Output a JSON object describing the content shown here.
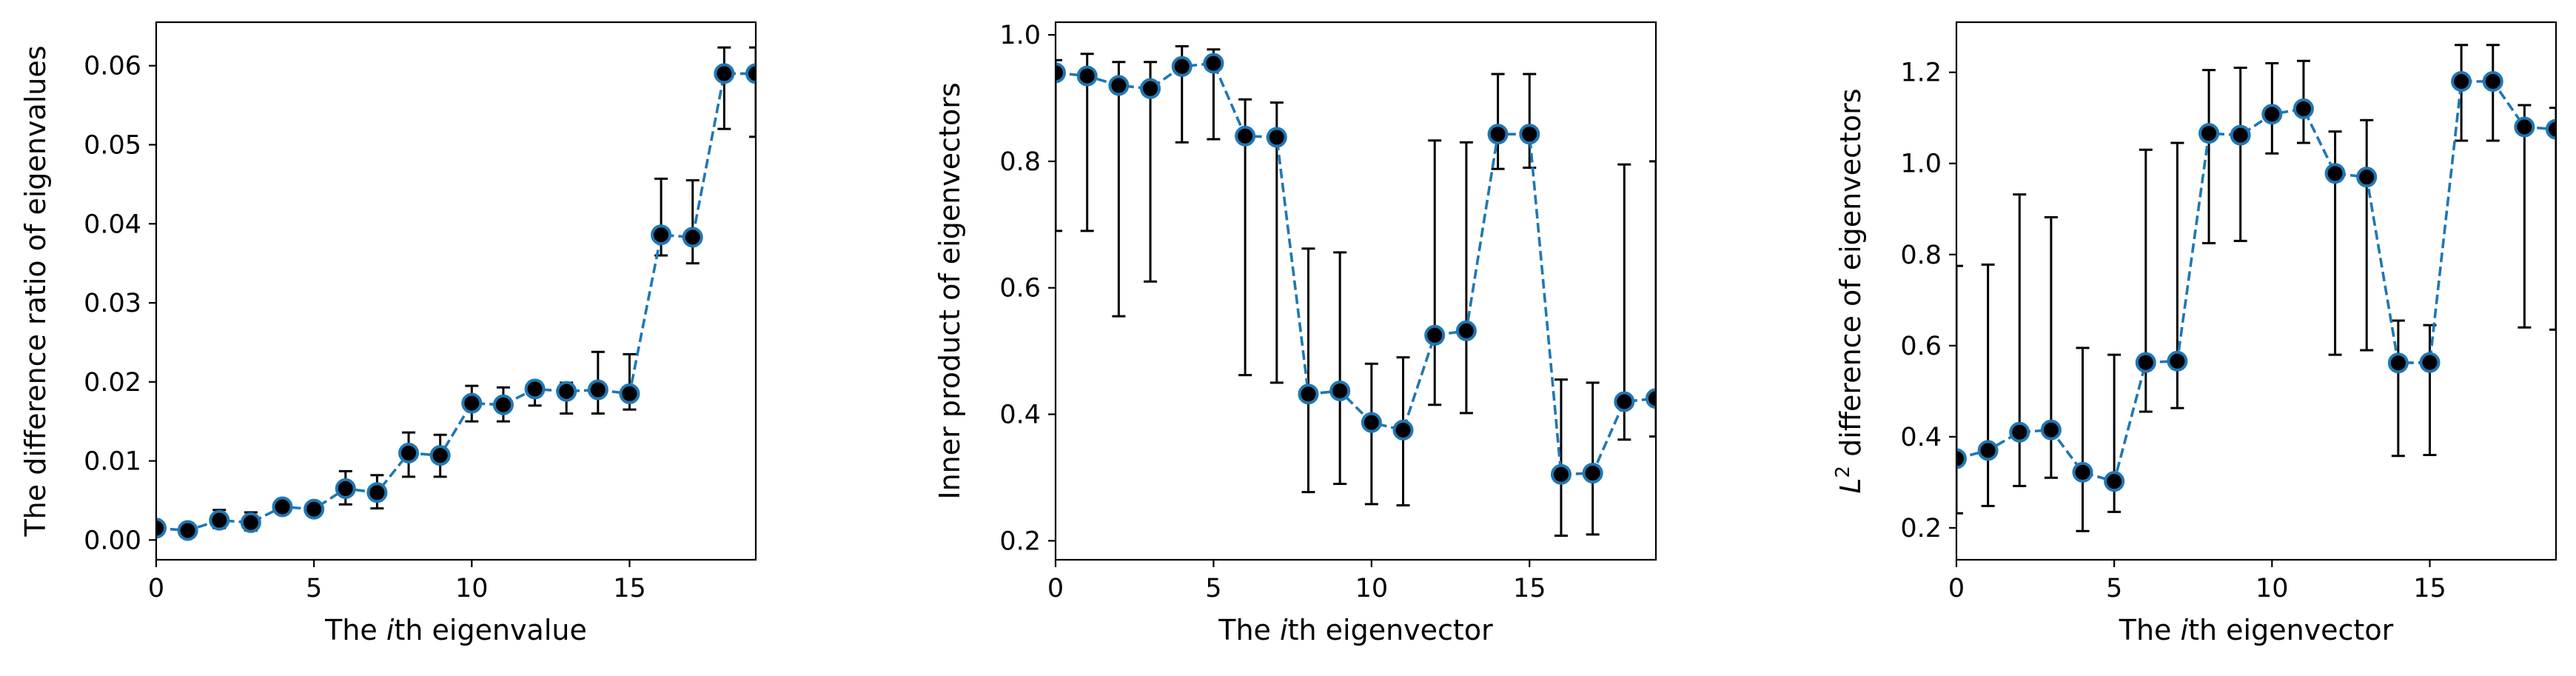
{
  "chart_data": [
    {
      "type": "line",
      "id": "eigenvalue-ratio",
      "title": "",
      "xlabel_pre": "The ",
      "xlabel_it": "i",
      "xlabel_post": "th eigenvalue",
      "ylabel": "The difference ratio of eigenvalues",
      "xlim": [
        0,
        19
      ],
      "ylim": [
        -0.0025,
        0.0655
      ],
      "xticks": [
        0,
        5,
        10,
        15
      ],
      "xtick_labels": [
        "0",
        "5",
        "10",
        "15"
      ],
      "yticks": [
        0.0,
        0.01,
        0.02,
        0.03,
        0.04,
        0.05,
        0.06
      ],
      "ytick_labels": [
        "0.00",
        "0.01",
        "0.02",
        "0.03",
        "0.04",
        "0.05",
        "0.06"
      ],
      "x": [
        0,
        1,
        2,
        3,
        4,
        5,
        6,
        7,
        8,
        9,
        10,
        11,
        12,
        13,
        14,
        15,
        16,
        17,
        18,
        19
      ],
      "y": [
        0.0015,
        0.0012,
        0.0025,
        0.0022,
        0.0042,
        0.0039,
        0.0065,
        0.006,
        0.011,
        0.0107,
        0.0173,
        0.0171,
        0.0191,
        0.0188,
        0.019,
        0.0185,
        0.0386,
        0.0383,
        0.059,
        0.059
      ],
      "err_low": [
        0.001,
        0.0008,
        0.0015,
        0.0012,
        0.0038,
        0.0035,
        0.0045,
        0.004,
        0.008,
        0.008,
        0.015,
        0.015,
        0.017,
        0.016,
        0.016,
        0.0165,
        0.036,
        0.035,
        0.052,
        0.051
      ],
      "err_high": [
        0.002,
        0.0016,
        0.0038,
        0.0035,
        0.0048,
        0.0045,
        0.0087,
        0.0082,
        0.0136,
        0.0133,
        0.0195,
        0.0193,
        0.02,
        0.0199,
        0.0238,
        0.0235,
        0.0457,
        0.0455,
        0.0623,
        0.0623
      ]
    },
    {
      "type": "line",
      "id": "inner-product",
      "title": "",
      "xlabel_pre": "The ",
      "xlabel_it": "i",
      "xlabel_post": "th eigenvector",
      "ylabel": "Inner product of eigenvectors",
      "xlim": [
        0,
        19
      ],
      "ylim": [
        0.17,
        1.02
      ],
      "xticks": [
        0,
        5,
        10,
        15
      ],
      "xtick_labels": [
        "0",
        "5",
        "10",
        "15"
      ],
      "yticks": [
        0.2,
        0.4,
        0.6,
        0.8,
        1.0
      ],
      "ytick_labels": [
        "0.2",
        "0.4",
        "0.6",
        "0.8",
        "1.0"
      ],
      "x": [
        0,
        1,
        2,
        3,
        4,
        5,
        6,
        7,
        8,
        9,
        10,
        11,
        12,
        13,
        14,
        15,
        16,
        17,
        18,
        19
      ],
      "y": [
        0.94,
        0.935,
        0.92,
        0.915,
        0.95,
        0.955,
        0.84,
        0.838,
        0.432,
        0.437,
        0.387,
        0.375,
        0.525,
        0.532,
        0.843,
        0.843,
        0.305,
        0.307,
        0.42,
        0.425
      ],
      "err_low": [
        0.69,
        0.69,
        0.555,
        0.61,
        0.83,
        0.835,
        0.462,
        0.45,
        0.277,
        0.29,
        0.258,
        0.256,
        0.415,
        0.402,
        0.788,
        0.79,
        0.208,
        0.21,
        0.36,
        0.365
      ],
      "err_high": [
        0.96,
        0.97,
        0.957,
        0.957,
        0.982,
        0.977,
        0.898,
        0.893,
        0.662,
        0.656,
        0.48,
        0.49,
        0.833,
        0.83,
        0.938,
        0.938,
        0.455,
        0.45,
        0.795,
        0.8
      ]
    },
    {
      "type": "line",
      "id": "l2-difference",
      "title": "",
      "xlabel_pre": "The ",
      "xlabel_it": "i",
      "xlabel_post": "th eigenvector",
      "ylabel_pre": "L",
      "ylabel_sup": "2",
      "ylabel_post": " difference of eigenvectors",
      "xlim": [
        0,
        19
      ],
      "ylim": [
        0.13,
        1.31
      ],
      "xticks": [
        0,
        5,
        10,
        15
      ],
      "xtick_labels": [
        "0",
        "5",
        "10",
        "15"
      ],
      "yticks": [
        0.2,
        0.4,
        0.6,
        0.8,
        1.0,
        1.2
      ],
      "ytick_labels": [
        "0.2",
        "0.4",
        "0.6",
        "0.8",
        "1.0",
        "1.2"
      ],
      "x": [
        0,
        1,
        2,
        3,
        4,
        5,
        6,
        7,
        8,
        9,
        10,
        11,
        12,
        13,
        14,
        15,
        16,
        17,
        18,
        19
      ],
      "y": [
        0.352,
        0.37,
        0.41,
        0.415,
        0.322,
        0.302,
        0.563,
        0.566,
        1.066,
        1.062,
        1.108,
        1.12,
        0.978,
        0.97,
        0.562,
        0.563,
        1.18,
        1.18,
        1.08,
        1.075
      ],
      "err_low": [
        0.232,
        0.248,
        0.292,
        0.31,
        0.193,
        0.235,
        0.455,
        0.463,
        0.825,
        0.83,
        1.022,
        1.045,
        0.58,
        0.59,
        0.358,
        0.36,
        1.05,
        1.05,
        0.64,
        0.635
      ],
      "err_high": [
        0.775,
        0.778,
        0.932,
        0.882,
        0.595,
        0.58,
        1.03,
        1.045,
        1.205,
        1.21,
        1.22,
        1.225,
        1.07,
        1.095,
        0.655,
        0.645,
        1.26,
        1.26,
        1.128,
        1.122
      ]
    }
  ]
}
